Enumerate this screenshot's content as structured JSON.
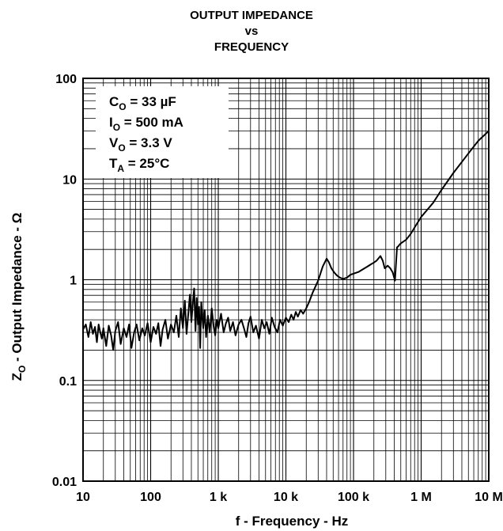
{
  "chart_data": {
    "type": "line",
    "title_lines": [
      "OUTPUT IMPEDANCE",
      "vs",
      "FREQUENCY"
    ],
    "xlabel": "f - Frequency - Hz",
    "ylabel": {
      "main": "Z",
      "sub": "O",
      "rest": " - Output Impedance - Ω"
    },
    "x_scale": "log",
    "y_scale": "log",
    "xlim": [
      10,
      10000000
    ],
    "ylim": [
      0.01,
      100
    ],
    "x_ticks": [
      {
        "value": 10,
        "label": "10"
      },
      {
        "value": 100,
        "label": "100"
      },
      {
        "value": 1000,
        "label": "1 k"
      },
      {
        "value": 10000,
        "label": "10 k"
      },
      {
        "value": 100000,
        "label": "100 k"
      },
      {
        "value": 1000000,
        "label": "1 M"
      },
      {
        "value": 10000000,
        "label": "10 M"
      }
    ],
    "y_ticks": [
      {
        "value": 100,
        "label": "100"
      },
      {
        "value": 10,
        "label": "10"
      },
      {
        "value": 1,
        "label": "1"
      },
      {
        "value": 0.1,
        "label": "0.1"
      },
      {
        "value": 0.01,
        "label": "0.01"
      }
    ],
    "grid": true,
    "annotations": [
      {
        "main": "C",
        "sub": "O",
        "rest": " = 33 µF"
      },
      {
        "main": "I",
        "sub": "O",
        "rest": " = 500 mA"
      },
      {
        "main": "V",
        "sub": "O",
        "rest": " = 3.3 V"
      },
      {
        "main": "T",
        "sub": "A",
        "rest": " = 25°C"
      }
    ],
    "series": [
      {
        "color": "#000000",
        "x": [
          10,
          11,
          12,
          13,
          14,
          15,
          16,
          17,
          18,
          19,
          20,
          22,
          24,
          26,
          28,
          30,
          33,
          36,
          40,
          44,
          48,
          52,
          57,
          62,
          68,
          75,
          82,
          90,
          100,
          110,
          120,
          130,
          140,
          150,
          165,
          180,
          200,
          220,
          240,
          260,
          280,
          300,
          320,
          340,
          360,
          380,
          400,
          420,
          440,
          460,
          480,
          500,
          520,
          540,
          560,
          580,
          600,
          630,
          660,
          700,
          750,
          800,
          850,
          900,
          950,
          1000,
          1100,
          1200,
          1300,
          1400,
          1500,
          1650,
          1800,
          2000,
          2200,
          2400,
          2600,
          2800,
          3000,
          3300,
          3600,
          4000,
          4400,
          4800,
          5200,
          5700,
          6200,
          6800,
          7500,
          8200,
          9000,
          10000,
          11000,
          12000,
          13000,
          14000,
          15000,
          16500,
          18000,
          20000,
          22000,
          25000,
          30000,
          35000,
          40000,
          43000,
          47000,
          52000,
          57000,
          63000,
          70000,
          80000,
          90000,
          100000,
          120000,
          140000,
          160000,
          180000,
          200000,
          220000,
          250000,
          270000,
          290000,
          320000,
          350000,
          380000,
          410000,
          440000,
          460000,
          470000,
          500000,
          600000,
          700000,
          800000,
          1000000,
          1500000,
          2000000,
          3000000,
          5000000,
          7000000,
          10000000
        ],
        "y": [
          0.32,
          0.36,
          0.27,
          0.38,
          0.29,
          0.34,
          0.24,
          0.36,
          0.3,
          0.26,
          0.33,
          0.22,
          0.35,
          0.28,
          0.2,
          0.31,
          0.38,
          0.23,
          0.33,
          0.27,
          0.36,
          0.21,
          0.3,
          0.36,
          0.25,
          0.33,
          0.28,
          0.37,
          0.24,
          0.34,
          0.29,
          0.37,
          0.22,
          0.32,
          0.4,
          0.26,
          0.36,
          0.3,
          0.44,
          0.27,
          0.52,
          0.33,
          0.62,
          0.29,
          0.46,
          0.71,
          0.38,
          0.58,
          0.82,
          0.31,
          0.66,
          0.36,
          0.54,
          0.21,
          0.6,
          0.42,
          0.33,
          0.5,
          0.27,
          0.44,
          0.3,
          0.52,
          0.35,
          0.28,
          0.4,
          0.33,
          0.46,
          0.3,
          0.37,
          0.42,
          0.31,
          0.38,
          0.28,
          0.36,
          0.4,
          0.33,
          0.27,
          0.37,
          0.43,
          0.3,
          0.35,
          0.26,
          0.4,
          0.33,
          0.38,
          0.29,
          0.42,
          0.34,
          0.3,
          0.4,
          0.35,
          0.42,
          0.38,
          0.45,
          0.4,
          0.48,
          0.43,
          0.5,
          0.46,
          0.52,
          0.6,
          0.75,
          0.98,
          1.35,
          1.62,
          1.5,
          1.3,
          1.18,
          1.1,
          1.05,
          1.02,
          1.05,
          1.12,
          1.15,
          1.2,
          1.28,
          1.35,
          1.42,
          1.48,
          1.55,
          1.72,
          1.55,
          1.3,
          1.38,
          1.3,
          1.18,
          0.98,
          2.1,
          2.15,
          2.2,
          2.3,
          2.5,
          2.85,
          3.3,
          4.2,
          5.8,
          7.8,
          11.5,
          18,
          24,
          30
        ]
      }
    ]
  }
}
